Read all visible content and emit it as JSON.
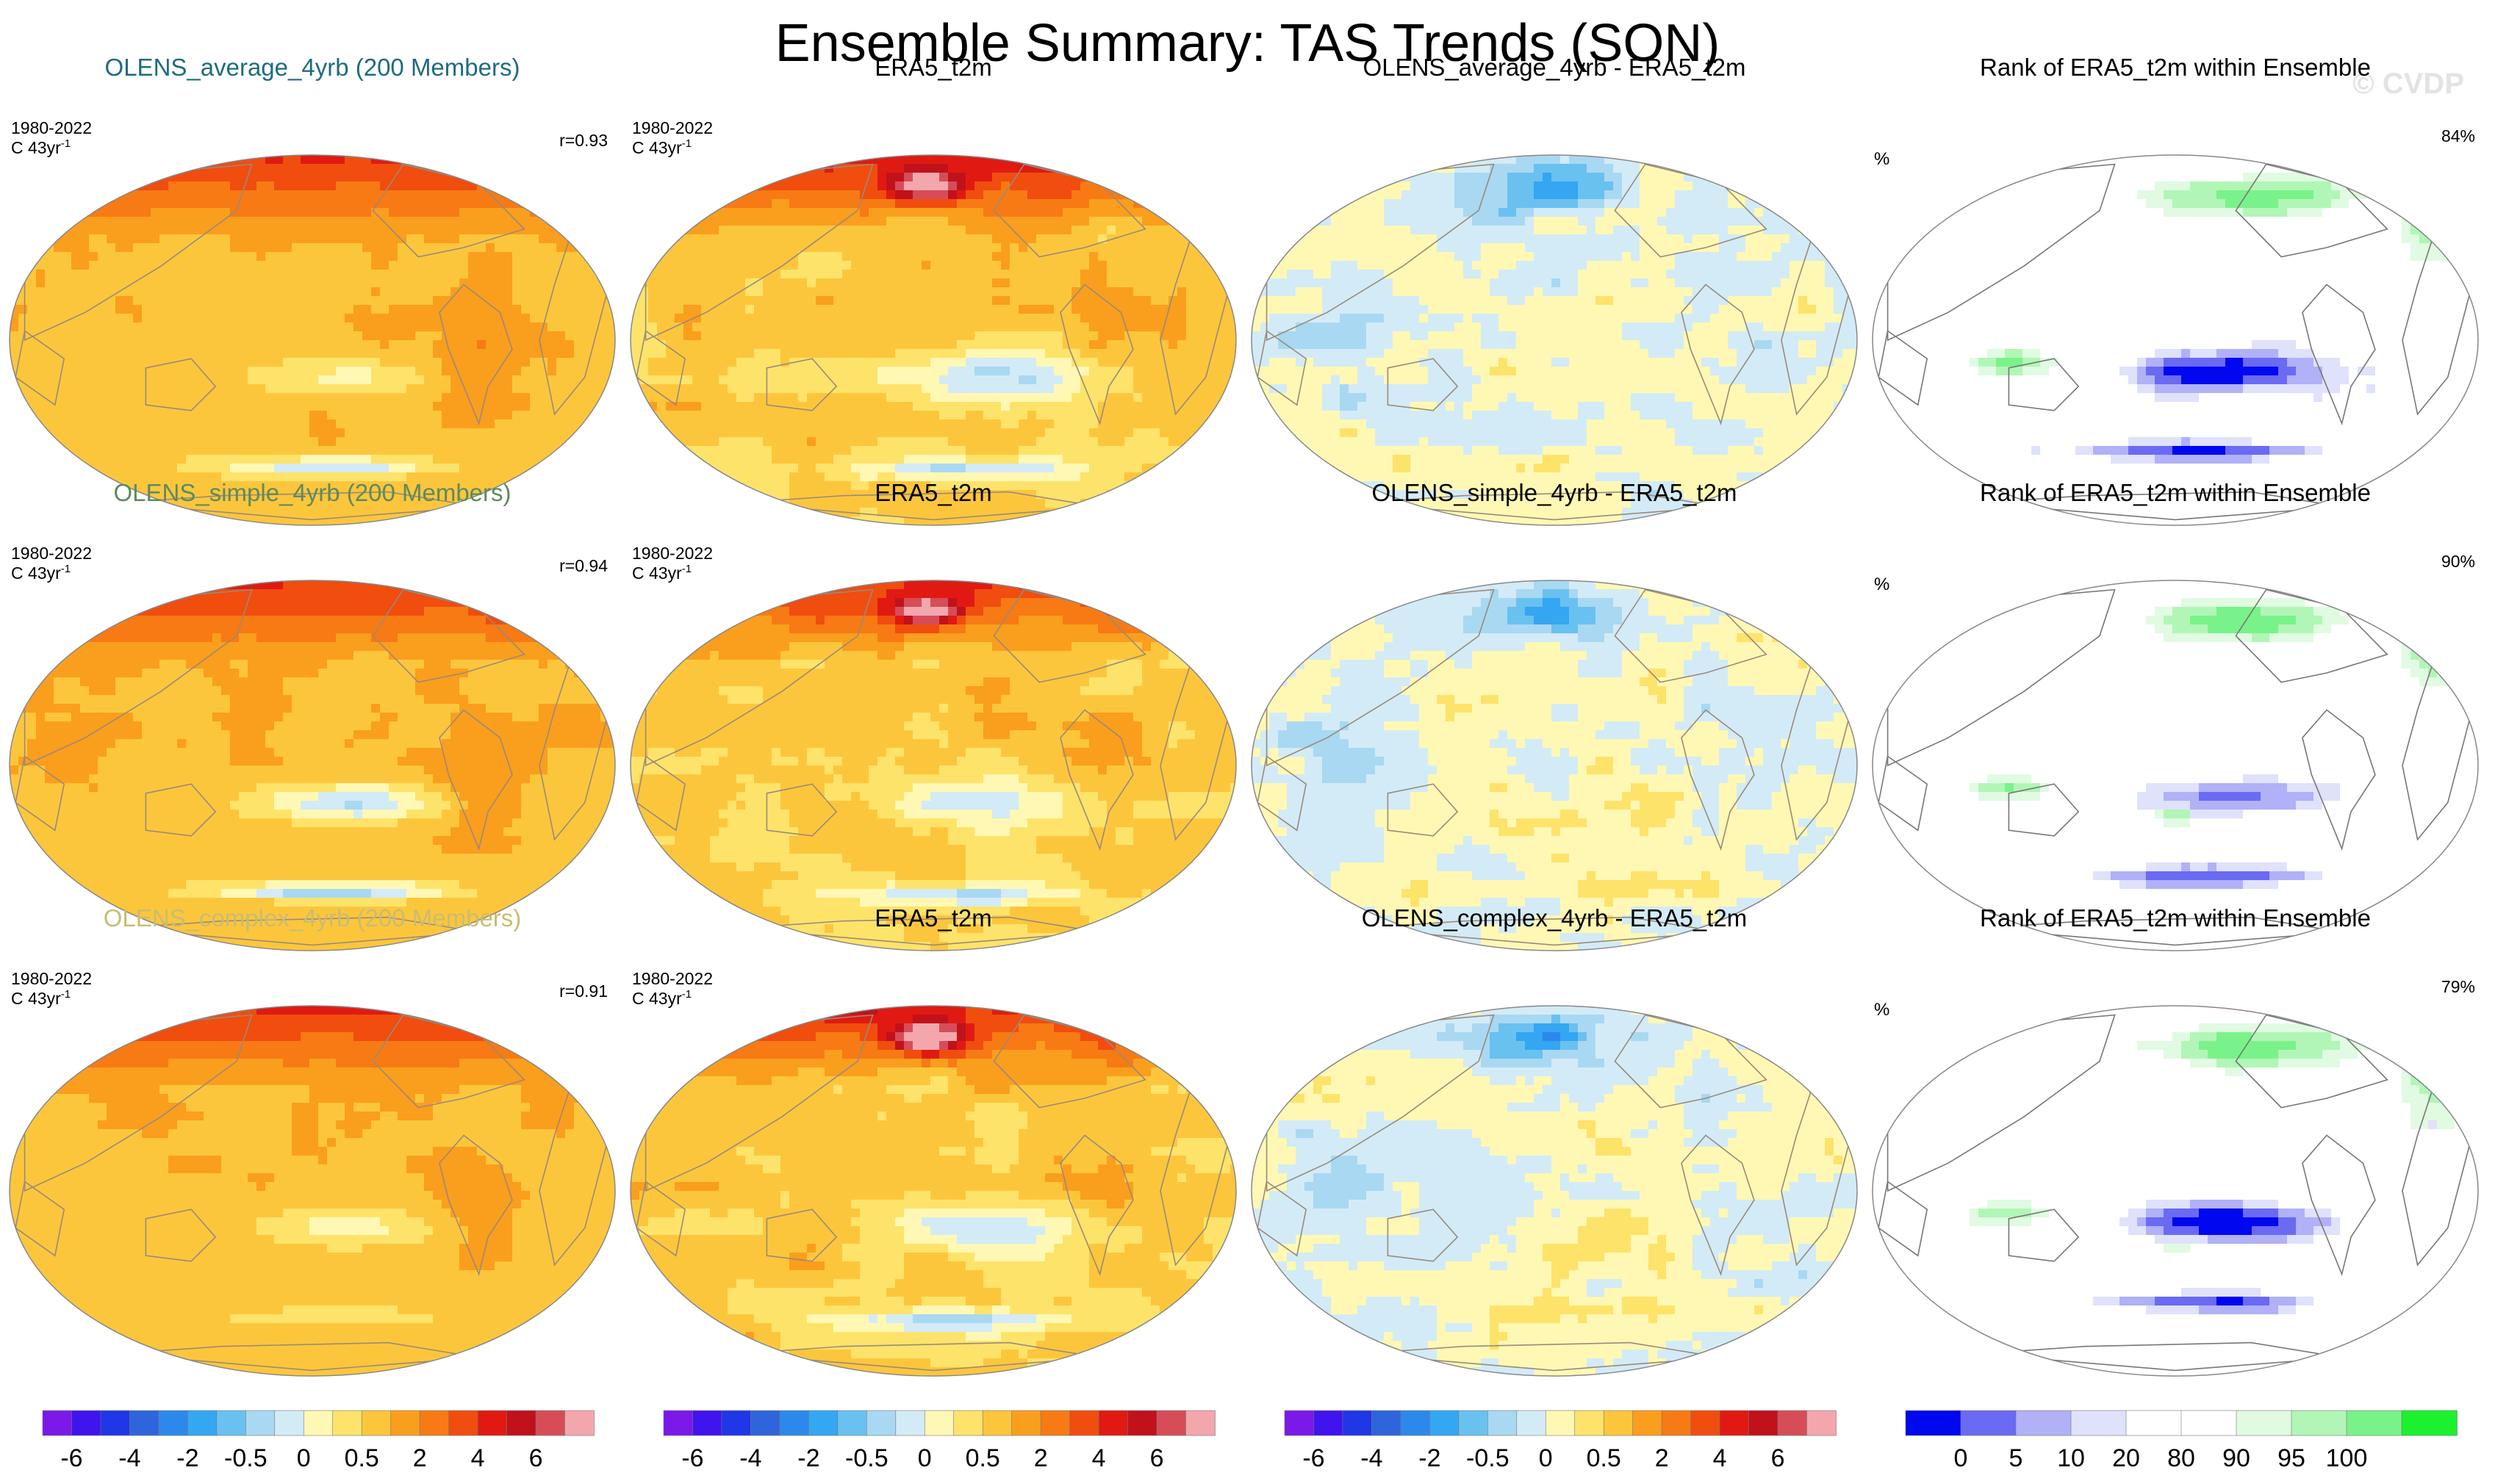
{
  "title": "Ensemble Summary: TAS Trends (SON)",
  "watermark": "© CVDP",
  "colors": {
    "trend_palette": [
      "#7b19e8",
      "#3f14ee",
      "#1f37e6",
      "#2e64dc",
      "#2d88eb",
      "#34a6f2",
      "#69c1f0",
      "#a9d8f2",
      "#d3ebf7",
      "#fff8b4",
      "#fde36a",
      "#fcc63c",
      "#fa9e1d",
      "#f77a14",
      "#f04d0f",
      "#e01a12",
      "#c1121b",
      "#d64d58",
      "#f3a7ad"
    ],
    "rank_palette": [
      "#0008f0",
      "#6a6af3",
      "#b0b1f6",
      "#e0e1fb",
      "#ffffff",
      "#ffffff",
      "#e0fbe2",
      "#b1f6b6",
      "#7af28a",
      "#1bf12f"
    ],
    "row_title_colors": [
      "#1f6b80",
      "#5e8a60",
      "#c8bd72"
    ],
    "coast": "#9a8a7a"
  },
  "chart_data": {
    "type": "heatmap",
    "rows": [
      {
        "models": "OLENS_average_4yrb (200 Members)",
        "panels": [
          {
            "kind": "ensemble",
            "title": "OLENS_average_4yrb (200 Members)",
            "period": "1980-2022",
            "units": "C 43yr",
            "units_exp": "-1",
            "stat": "r=0.93",
            "field": "mean_warm"
          },
          {
            "kind": "obs",
            "title": "ERA5_t2m",
            "period": "1980-2022",
            "units": "C 43yr",
            "units_exp": "-1",
            "stat": "",
            "field": "obs"
          },
          {
            "kind": "diff",
            "title": "OLENS_average_4yrb - ERA5_t2m",
            "period": "",
            "units": "",
            "units_exp": "",
            "stat": "",
            "field": "diff"
          },
          {
            "kind": "rank",
            "title": "Rank of ERA5_t2m within Ensemble",
            "period": "%",
            "units": "",
            "units_exp": "",
            "stat": "84%",
            "field": "rank"
          }
        ]
      },
      {
        "models": "OLENS_simple_4yrb (200 Members)",
        "panels": [
          {
            "kind": "ensemble",
            "title": "OLENS_simple_4yrb (200 Members)",
            "period": "1980-2022",
            "units": "C 43yr",
            "units_exp": "-1",
            "stat": "r=0.94",
            "field": "mean_warm"
          },
          {
            "kind": "obs",
            "title": "ERA5_t2m",
            "period": "1980-2022",
            "units": "C 43yr",
            "units_exp": "-1",
            "stat": "",
            "field": "obs"
          },
          {
            "kind": "diff",
            "title": "OLENS_simple_4yrb - ERA5_t2m",
            "period": "",
            "units": "",
            "units_exp": "",
            "stat": "",
            "field": "diff"
          },
          {
            "kind": "rank",
            "title": "Rank of ERA5_t2m within Ensemble",
            "period": "%",
            "units": "",
            "units_exp": "",
            "stat": "90%",
            "field": "rank"
          }
        ]
      },
      {
        "models": "OLENS_complex_4yrb (200 Members)",
        "panels": [
          {
            "kind": "ensemble",
            "title": "OLENS_complex_4yrb (200 Members)",
            "period": "1980-2022",
            "units": "C 43yr",
            "units_exp": "-1",
            "stat": "r=0.91",
            "field": "mean_warm"
          },
          {
            "kind": "obs",
            "title": "ERA5_t2m",
            "period": "1980-2022",
            "units": "C 43yr",
            "units_exp": "-1",
            "stat": "",
            "field": "obs"
          },
          {
            "kind": "diff",
            "title": "OLENS_complex_4yrb - ERA5_t2m",
            "period": "",
            "units": "",
            "units_exp": "",
            "stat": "",
            "field": "diff"
          },
          {
            "kind": "rank",
            "title": "Rank of ERA5_t2m within Ensemble",
            "period": "%",
            "units": "",
            "units_exp": "",
            "stat": "79%",
            "field": "rank"
          }
        ]
      }
    ],
    "colorbars": [
      {
        "palette": "trend",
        "ticks": [
          "-6",
          "-4",
          "-2",
          "-0.5",
          "0",
          "0.5",
          "2",
          "4",
          "6"
        ]
      },
      {
        "palette": "trend",
        "ticks": [
          "-6",
          "-4",
          "-2",
          "-0.5",
          "0",
          "0.5",
          "2",
          "4",
          "6"
        ]
      },
      {
        "palette": "trend",
        "ticks": [
          "-6",
          "-4",
          "-2",
          "-0.5",
          "0",
          "0.5",
          "2",
          "4",
          "6"
        ]
      },
      {
        "palette": "rank",
        "ticks": [
          "0",
          "5",
          "10",
          "20",
          "80",
          "90",
          "95",
          "100"
        ]
      }
    ]
  }
}
